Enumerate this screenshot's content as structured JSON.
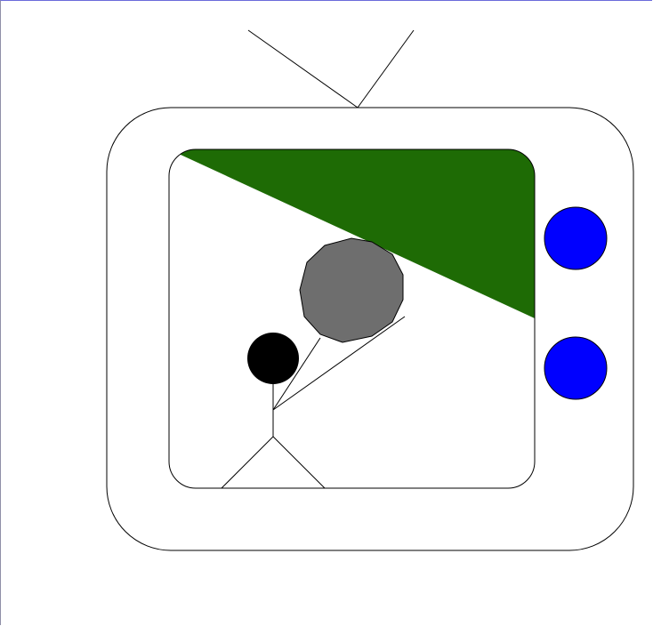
{
  "scene": {
    "subject": "television-drawing",
    "colors": {
      "background": "#ffffff",
      "outline": "#000000",
      "tv_body": "#ffffff",
      "screen_bg": "#ffffff",
      "hill": "#1e6b05",
      "boulder": "#6e6e6e",
      "figure_head": "#000000",
      "knobs": "#0000ff"
    },
    "icons": [
      "antenna",
      "tv-body",
      "screen",
      "hill",
      "boulder",
      "stick-figure",
      "knob-top",
      "knob-bottom"
    ]
  }
}
